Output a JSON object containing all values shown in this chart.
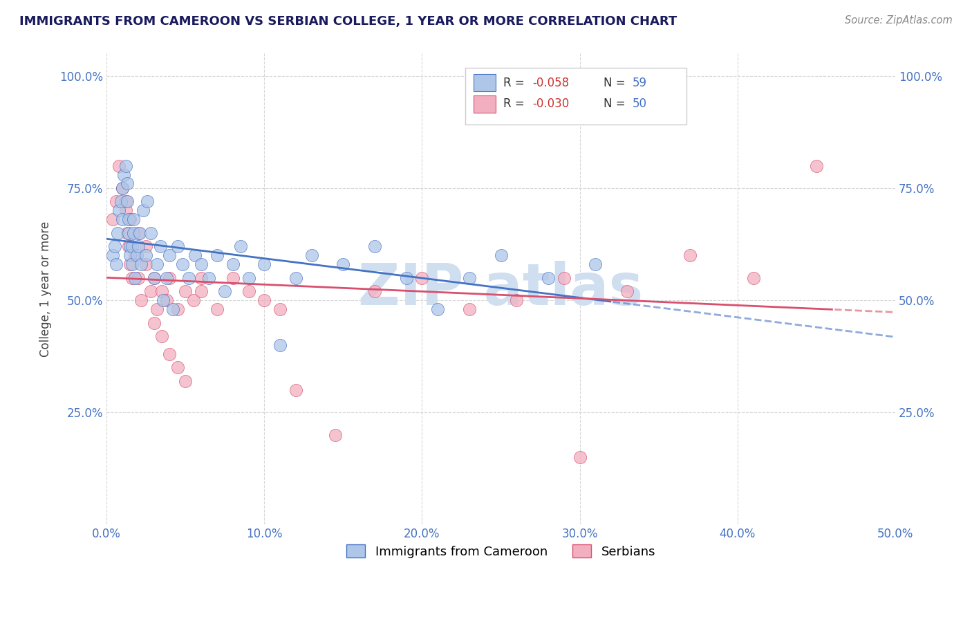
{
  "title": "IMMIGRANTS FROM CAMEROON VS SERBIAN COLLEGE, 1 YEAR OR MORE CORRELATION CHART",
  "source": "Source: ZipAtlas.com",
  "ylabel": "College, 1 year or more",
  "xlim": [
    0.0,
    0.5
  ],
  "ylim": [
    0.0,
    1.05
  ],
  "xtick_labels": [
    "0.0%",
    "10.0%",
    "20.0%",
    "30.0%",
    "40.0%",
    "50.0%"
  ],
  "xtick_values": [
    0.0,
    0.1,
    0.2,
    0.3,
    0.4,
    0.5
  ],
  "ytick_labels": [
    "25.0%",
    "50.0%",
    "75.0%",
    "100.0%"
  ],
  "ytick_values": [
    0.25,
    0.5,
    0.75,
    1.0
  ],
  "legend_r1": "-0.058",
  "legend_n1": "59",
  "legend_r2": "-0.030",
  "legend_n2": "50",
  "legend_label1": "Immigrants from Cameroon",
  "legend_label2": "Serbians",
  "color_blue": "#aec6e8",
  "color_pink": "#f2afc0",
  "trendline_blue": "#4472c4",
  "trendline_pink": "#d94f6e",
  "text_blue": "#4472c4",
  "text_red": "#cc3333",
  "title_color": "#1a1a5e",
  "source_color": "#888888",
  "watermark_color": "#d0dff0",
  "blue_scatter_x": [
    0.004,
    0.005,
    0.006,
    0.007,
    0.008,
    0.009,
    0.01,
    0.01,
    0.011,
    0.012,
    0.013,
    0.013,
    0.014,
    0.014,
    0.015,
    0.015,
    0.016,
    0.016,
    0.017,
    0.017,
    0.018,
    0.019,
    0.02,
    0.021,
    0.022,
    0.023,
    0.025,
    0.026,
    0.028,
    0.03,
    0.032,
    0.034,
    0.036,
    0.038,
    0.04,
    0.042,
    0.045,
    0.048,
    0.052,
    0.056,
    0.06,
    0.065,
    0.07,
    0.075,
    0.08,
    0.085,
    0.09,
    0.1,
    0.11,
    0.12,
    0.13,
    0.15,
    0.17,
    0.19,
    0.21,
    0.23,
    0.25,
    0.28,
    0.31
  ],
  "blue_scatter_y": [
    0.6,
    0.62,
    0.58,
    0.65,
    0.7,
    0.72,
    0.68,
    0.75,
    0.78,
    0.8,
    0.76,
    0.72,
    0.68,
    0.65,
    0.62,
    0.6,
    0.58,
    0.62,
    0.65,
    0.68,
    0.55,
    0.6,
    0.62,
    0.65,
    0.58,
    0.7,
    0.6,
    0.72,
    0.65,
    0.55,
    0.58,
    0.62,
    0.5,
    0.55,
    0.6,
    0.48,
    0.62,
    0.58,
    0.55,
    0.6,
    0.58,
    0.55,
    0.6,
    0.52,
    0.58,
    0.62,
    0.55,
    0.58,
    0.4,
    0.55,
    0.6,
    0.58,
    0.62,
    0.55,
    0.48,
    0.55,
    0.6,
    0.55,
    0.58
  ],
  "pink_scatter_x": [
    0.004,
    0.006,
    0.008,
    0.01,
    0.012,
    0.013,
    0.014,
    0.015,
    0.016,
    0.018,
    0.02,
    0.022,
    0.025,
    0.028,
    0.03,
    0.032,
    0.035,
    0.038,
    0.04,
    0.045,
    0.05,
    0.055,
    0.06,
    0.07,
    0.08,
    0.09,
    0.1,
    0.11,
    0.12,
    0.145,
    0.17,
    0.2,
    0.23,
    0.26,
    0.29,
    0.33,
    0.37,
    0.41,
    0.45,
    0.012,
    0.015,
    0.02,
    0.025,
    0.03,
    0.035,
    0.04,
    0.045,
    0.05,
    0.06,
    0.3
  ],
  "pink_scatter_y": [
    0.68,
    0.72,
    0.8,
    0.75,
    0.7,
    0.65,
    0.62,
    0.58,
    0.55,
    0.6,
    0.55,
    0.5,
    0.58,
    0.52,
    0.55,
    0.48,
    0.52,
    0.5,
    0.55,
    0.48,
    0.52,
    0.5,
    0.52,
    0.48,
    0.55,
    0.52,
    0.5,
    0.48,
    0.3,
    0.2,
    0.52,
    0.55,
    0.48,
    0.5,
    0.55,
    0.52,
    0.6,
    0.55,
    0.8,
    0.72,
    0.68,
    0.65,
    0.62,
    0.45,
    0.42,
    0.38,
    0.35,
    0.32,
    0.55,
    0.15
  ]
}
